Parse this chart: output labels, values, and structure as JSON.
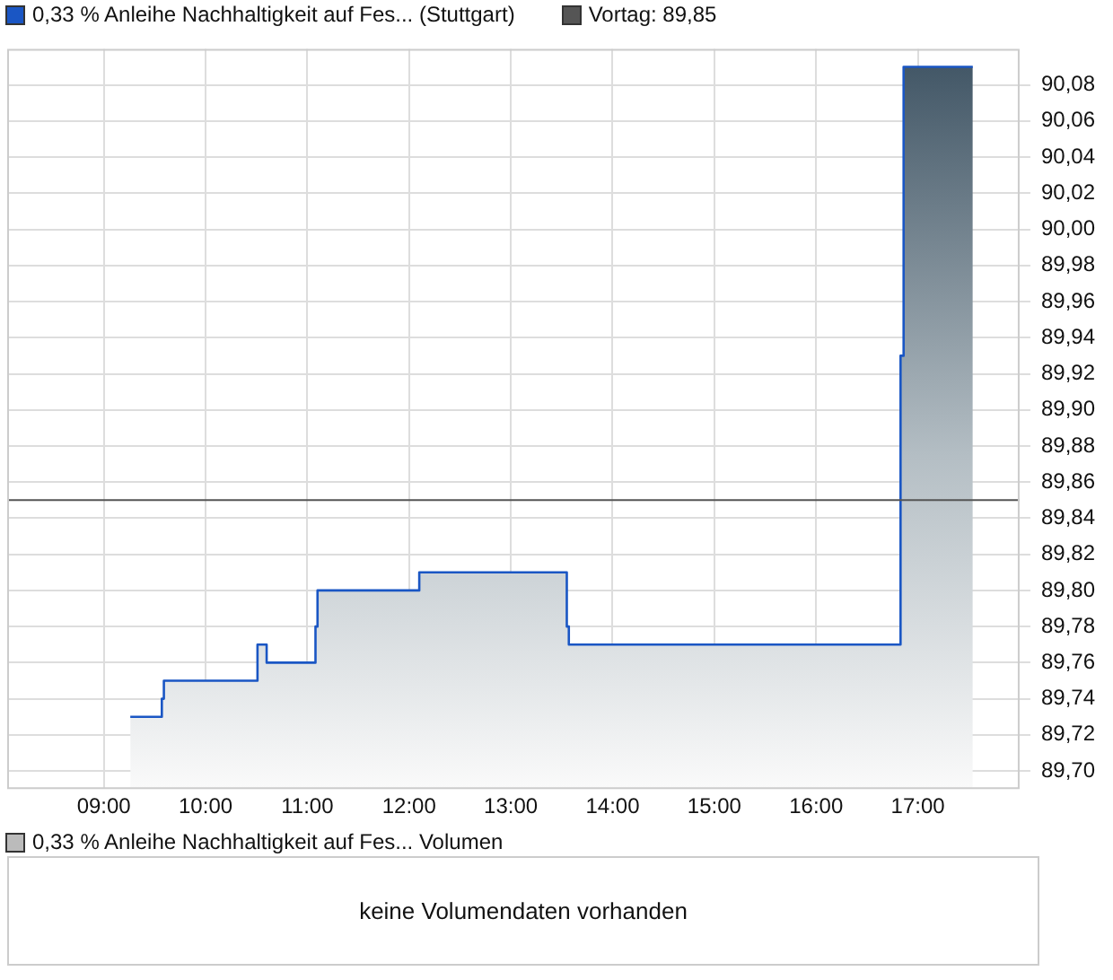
{
  "chart_data": {
    "type": "area",
    "x": [
      9.26,
      9.57,
      9.57,
      9.59,
      9.59,
      10.51,
      10.51,
      10.6,
      10.6,
      11.08,
      11.08,
      11.1,
      11.1,
      12.1,
      12.1,
      13.55,
      13.55,
      13.57,
      13.57,
      16.83,
      16.83,
      16.86,
      16.86,
      17.54
    ],
    "series": [
      {
        "name": "0,33 % Anleihe Nachhaltigkeit auf Fes... (Stuttgart)",
        "color": "#1a56c4",
        "values": [
          89.73,
          89.73,
          89.74,
          89.74,
          89.75,
          89.75,
          89.77,
          89.77,
          89.76,
          89.76,
          89.78,
          89.78,
          89.8,
          89.8,
          89.81,
          89.81,
          89.78,
          89.78,
          89.77,
          89.77,
          89.93,
          89.93,
          90.09,
          90.09
        ]
      }
    ],
    "xlim": [
      8.05,
      18
    ],
    "xticks": [
      {
        "value": 9,
        "label": "09:00"
      },
      {
        "value": 10,
        "label": "10:00"
      },
      {
        "value": 11,
        "label": "11:00"
      },
      {
        "value": 12,
        "label": "12:00"
      },
      {
        "value": 13,
        "label": "13:00"
      },
      {
        "value": 14,
        "label": "14:00"
      },
      {
        "value": 15,
        "label": "15:00"
      },
      {
        "value": 16,
        "label": "16:00"
      },
      {
        "value": 17,
        "label": "17:00"
      }
    ],
    "ylim": [
      89.69,
      90.1
    ],
    "yticks": [
      {
        "value": 89.7,
        "label": "89,70"
      },
      {
        "value": 89.72,
        "label": "89,72"
      },
      {
        "value": 89.74,
        "label": "89,74"
      },
      {
        "value": 89.76,
        "label": "89,76"
      },
      {
        "value": 89.78,
        "label": "89,78"
      },
      {
        "value": 89.8,
        "label": "89,80"
      },
      {
        "value": 89.82,
        "label": "89,82"
      },
      {
        "value": 89.84,
        "label": "89,84"
      },
      {
        "value": 89.86,
        "label": "89,86"
      },
      {
        "value": 89.88,
        "label": "89,88"
      },
      {
        "value": 89.9,
        "label": "89,90"
      },
      {
        "value": 89.92,
        "label": "89,92"
      },
      {
        "value": 89.94,
        "label": "89,94"
      },
      {
        "value": 89.96,
        "label": "89,96"
      },
      {
        "value": 89.98,
        "label": "89,98"
      },
      {
        "value": 90,
        "label": "90,00"
      },
      {
        "value": 90.02,
        "label": "90,02"
      },
      {
        "value": 90.04,
        "label": "90,04"
      },
      {
        "value": 90.06,
        "label": "90,06"
      },
      {
        "value": 90.08,
        "label": "90,08"
      }
    ],
    "ref_lines": [
      {
        "axis": "y",
        "value": 89.85,
        "label": "Vortag: 89,85",
        "color": "#555555"
      }
    ],
    "grid": true,
    "legend": "top left",
    "annotations": [
      "0,33 % Anleihe Nachhaltigkeit auf Fes... Volumen",
      "keine Volumendaten vorhanden"
    ]
  }
}
